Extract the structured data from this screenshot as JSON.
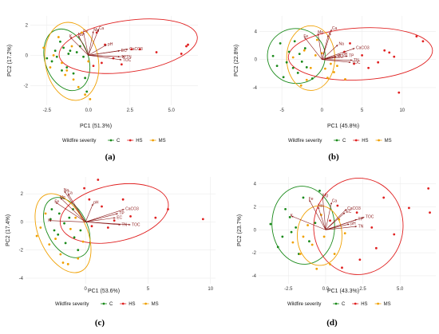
{
  "legend": {
    "title": "Wildfire severity",
    "items": [
      "C",
      "HS",
      "MS"
    ]
  },
  "colors": {
    "C": "#1a8a1a",
    "HS": "#e02020",
    "MS": "#f0a000",
    "arrow": "#8b1a1a",
    "grid": "#ececec"
  },
  "chart_data": [
    {
      "type": "scatter",
      "panel_label": "(a)",
      "xlabel": "PC1 (51.3%)",
      "ylabel": "PC2 (17.2%)",
      "xlim": [
        -3.5,
        6.6
      ],
      "ylim": [
        -3.3,
        2.6
      ],
      "xticks": [
        "-2.5",
        "0.0",
        "2.5",
        "5.0"
      ],
      "xtick_values": [
        -2.5,
        0,
        2.5,
        5
      ],
      "yticks": [
        "2",
        "0",
        "-2"
      ],
      "ytick_values": [
        2,
        0,
        -2
      ],
      "ellipses": [
        {
          "group": "C",
          "cx": -1.3,
          "cy": -0.3,
          "rx": 1.3,
          "ry": 2.1,
          "angle": -20
        },
        {
          "group": "HS",
          "cx": 2.4,
          "cy": 0.6,
          "rx": 4.2,
          "ry": 1.7,
          "angle": -8
        },
        {
          "group": "MS",
          "cx": -1.0,
          "cy": -0.4,
          "rx": 1.6,
          "ry": 2.6,
          "angle": -10
        }
      ],
      "arrows": [
        {
          "label": "pH",
          "x": 1.1,
          "y": 0.7
        },
        {
          "label": "EC",
          "x": 1.9,
          "y": 0.3
        },
        {
          "label": "CaCO3",
          "x": 2.4,
          "y": 0.4
        },
        {
          "label": "TP",
          "x": 1.9,
          "y": -0.1
        },
        {
          "label": "TN",
          "x": 2.2,
          "y": -0.1
        },
        {
          "label": "TOC",
          "x": 2.0,
          "y": -0.3
        },
        {
          "label": "Ca",
          "x": 0.6,
          "y": 1.7
        },
        {
          "label": "Mg",
          "x": 0.3,
          "y": 1.6
        },
        {
          "label": "Fe",
          "x": -0.3,
          "y": 1.5
        },
        {
          "label": "K",
          "x": -1.1,
          "y": 1.2
        },
        {
          "label": "Na",
          "x": -0.6,
          "y": 1.3
        }
      ],
      "series": [
        {
          "group": "C",
          "points": [
            [
              -1.7,
              0.9
            ],
            [
              -2.2,
              -0.4
            ],
            [
              -1.9,
              -0.1
            ],
            [
              -1.5,
              0.5
            ],
            [
              -1.2,
              0.1
            ],
            [
              -2.5,
              -0.2
            ],
            [
              -0.5,
              0.6
            ],
            [
              -0.9,
              -1.2
            ],
            [
              -1.3,
              -0.8
            ],
            [
              -0.3,
              -0.1
            ],
            [
              -2.0,
              0.3
            ],
            [
              -1.1,
              0.3
            ],
            [
              -0.2,
              -1.5
            ],
            [
              -1.6,
              -1.0
            ],
            [
              -0.7,
              0.2
            ],
            [
              -0.1,
              -2.4
            ]
          ]
        },
        {
          "group": "HS",
          "points": [
            [
              0.5,
              1.5
            ],
            [
              1.0,
              0.7
            ],
            [
              2.6,
              0.4
            ],
            [
              3.1,
              0.4
            ],
            [
              4.1,
              0.2
            ],
            [
              5.6,
              0.1
            ],
            [
              5.9,
              0.6
            ],
            [
              6.0,
              0.7
            ],
            [
              2.0,
              -0.6
            ],
            [
              0.8,
              -0.5
            ],
            [
              1.5,
              -0.2
            ],
            [
              0.3,
              -0.7
            ]
          ]
        },
        {
          "group": "MS",
          "points": [
            [
              -2.1,
              0.0
            ],
            [
              -1.6,
              -0.5
            ],
            [
              -1.3,
              -1.0
            ],
            [
              -0.9,
              -1.6
            ],
            [
              -0.6,
              -2.1
            ],
            [
              -0.2,
              -2.6
            ],
            [
              0.1,
              -2.9
            ],
            [
              -2.7,
              0.5
            ],
            [
              -1.8,
              1.2
            ],
            [
              -0.4,
              1.5
            ],
            [
              -2.3,
              -0.8
            ],
            [
              -1.0,
              0.6
            ],
            [
              0.0,
              -0.4
            ],
            [
              -1.4,
              -1.3
            ]
          ]
        }
      ]
    },
    {
      "type": "scatter",
      "panel_label": "(b)",
      "xlabel": "PC1 (45.8%)",
      "ylabel": "PC2 (22.8%)",
      "xlim": [
        -7.8,
        14.2
      ],
      "ylim": [
        -6.5,
        6.2
      ],
      "xticks": [
        "-5",
        "0",
        "5",
        "10"
      ],
      "xtick_values": [
        -5,
        0,
        5,
        10
      ],
      "yticks": [
        "4",
        "0",
        "-4"
      ],
      "ytick_values": [
        4,
        0,
        -4
      ],
      "ellipses": [
        {
          "group": "C",
          "cx": -3.2,
          "cy": 0.5,
          "rx": 3.6,
          "ry": 3.9,
          "angle": 5
        },
        {
          "group": "HS",
          "cx": 4.8,
          "cy": 0.8,
          "rx": 9.0,
          "ry": 3.7,
          "angle": -3
        },
        {
          "group": "MS",
          "cx": -1.4,
          "cy": 0.2,
          "rx": 3.0,
          "ry": 4.6,
          "angle": 0
        }
      ],
      "arrows": [
        {
          "label": "pH",
          "x": 2.4,
          "y": 0.7
        },
        {
          "label": "EC",
          "x": 1.8,
          "y": 0.4
        },
        {
          "label": "CaCO3",
          "x": 4.1,
          "y": 1.6
        },
        {
          "label": "TP",
          "x": 3.2,
          "y": 0.5
        },
        {
          "label": "TN",
          "x": 3.8,
          "y": -0.1
        },
        {
          "label": "TOC",
          "x": 3.6,
          "y": -0.4
        },
        {
          "label": "Ca",
          "x": 1.2,
          "y": 4.3
        },
        {
          "label": "Mg",
          "x": -0.5,
          "y": 3.7
        },
        {
          "label": "Fe",
          "x": -2.2,
          "y": 3.2
        },
        {
          "label": "K",
          "x": 0.8,
          "y": 3.5
        },
        {
          "label": "Na",
          "x": 2.0,
          "y": 2.1
        }
      ],
      "series": [
        {
          "group": "C",
          "points": [
            [
              -5.2,
              2.3
            ],
            [
              -6.1,
              0.5
            ],
            [
              -4.4,
              -0.4
            ],
            [
              -3.6,
              -1.2
            ],
            [
              -2.8,
              0.8
            ],
            [
              -4.8,
              -2.5
            ],
            [
              -3.0,
              -1.9
            ],
            [
              -1.9,
              -1.1
            ],
            [
              -5.6,
              -0.9
            ],
            [
              -2.1,
              1.6
            ],
            [
              -3.4,
              2.6
            ],
            [
              -1.2,
              -2.7
            ],
            [
              -4.1,
              1.1
            ],
            [
              -2.5,
              -0.3
            ]
          ]
        },
        {
          "group": "HS",
          "points": [
            [
              3.5,
              2.3
            ],
            [
              5.0,
              0.6
            ],
            [
              7.0,
              -0.4
            ],
            [
              7.8,
              1.3
            ],
            [
              9.0,
              0.4
            ],
            [
              11.8,
              3.3
            ],
            [
              12.6,
              2.6
            ],
            [
              9.6,
              -4.7
            ],
            [
              4.0,
              -0.6
            ],
            [
              2.8,
              1.1
            ],
            [
              5.8,
              -1.2
            ],
            [
              8.4,
              1.0
            ]
          ]
        },
        {
          "group": "MS",
          "points": [
            [
              -2.6,
              -3.7
            ],
            [
              -1.4,
              -1.2
            ],
            [
              -0.8,
              0.6
            ],
            [
              0.4,
              -1.3
            ],
            [
              -1.9,
              -2.9
            ],
            [
              1.1,
              -0.6
            ],
            [
              -0.6,
              2.8
            ],
            [
              0.7,
              -2.6
            ],
            [
              -3.6,
              0.3
            ],
            [
              1.9,
              -0.9
            ],
            [
              2.9,
              -2.8
            ],
            [
              0.0,
              0.9
            ],
            [
              -2.2,
              1.3
            ],
            [
              1.5,
              -1.8
            ]
          ]
        }
      ]
    },
    {
      "type": "scatter",
      "panel_label": "(c)",
      "xlabel": "PC1 (53.6%)",
      "ylabel": "PC2 (17.4%)",
      "xlim": [
        -4.8,
        10.4
      ],
      "ylim": [
        -4.4,
        3.2
      ],
      "xticks": [
        "0",
        "5",
        "10"
      ],
      "xtick_values": [
        0,
        5,
        10
      ],
      "yticks": [
        "2",
        "0",
        "-2",
        "-4"
      ],
      "ytick_values": [
        2,
        0,
        -2,
        -4
      ],
      "ellipses": [
        {
          "group": "C",
          "cx": -1.5,
          "cy": -0.4,
          "rx": 1.6,
          "ry": 2.3,
          "angle": -28
        },
        {
          "group": "HS",
          "cx": 2.3,
          "cy": 0.6,
          "rx": 4.4,
          "ry": 2.0,
          "angle": -12
        },
        {
          "group": "MS",
          "cx": -1.8,
          "cy": -0.8,
          "rx": 1.9,
          "ry": 3.0,
          "angle": -25
        }
      ],
      "arrows": [
        {
          "label": "pH",
          "x": 0.6,
          "y": 1.3
        },
        {
          "label": "EC",
          "x": 2.4,
          "y": 0.3
        },
        {
          "label": "CaCO3",
          "x": 3.1,
          "y": 0.9
        },
        {
          "label": "TP",
          "x": 2.6,
          "y": 0.6
        },
        {
          "label": "TN",
          "x": 2.8,
          "y": -0.2
        },
        {
          "label": "TOC",
          "x": 3.6,
          "y": -0.2
        },
        {
          "label": "Ca",
          "x": -1.4,
          "y": 2.0
        },
        {
          "label": "Mg",
          "x": -2.0,
          "y": 1.7
        },
        {
          "label": "Fe",
          "x": -2.4,
          "y": 1.4
        },
        {
          "label": "K",
          "x": -2.9,
          "y": 0.1
        },
        {
          "label": "Na",
          "x": -1.7,
          "y": 2.2
        }
      ],
      "series": [
        {
          "group": "C",
          "points": [
            [
              -2.1,
              0.6
            ],
            [
              -1.7,
              -0.1
            ],
            [
              -2.5,
              -0.6
            ],
            [
              -1.3,
              0.3
            ],
            [
              -0.9,
              -1.1
            ],
            [
              -2.7,
              0.9
            ],
            [
              -1.6,
              -1.5
            ],
            [
              -0.4,
              -0.6
            ],
            [
              -2.2,
              -0.9
            ],
            [
              -1.0,
              0.9
            ],
            [
              -0.6,
              -2.0
            ],
            [
              -2.8,
              0.2
            ]
          ]
        },
        {
          "group": "HS",
          "points": [
            [
              0.3,
              1.6
            ],
            [
              1.3,
              1.1
            ],
            [
              2.3,
              0.1
            ],
            [
              3.6,
              0.4
            ],
            [
              5.6,
              0.3
            ],
            [
              6.6,
              0.9
            ],
            [
              9.4,
              0.2
            ],
            [
              1.0,
              3.0
            ],
            [
              0.5,
              -0.3
            ],
            [
              1.8,
              -0.4
            ],
            [
              3.0,
              1.6
            ],
            [
              -0.1,
              2.4
            ]
          ]
        },
        {
          "group": "MS",
          "points": [
            [
              -3.6,
              -0.4
            ],
            [
              -2.9,
              -1.6
            ],
            [
              -2.0,
              -2.3
            ],
            [
              -1.4,
              -3.0
            ],
            [
              -0.6,
              -2.6
            ],
            [
              -3.2,
              0.6
            ],
            [
              -1.2,
              -0.5
            ],
            [
              -2.4,
              -1.2
            ],
            [
              -0.8,
              0.3
            ],
            [
              -3.9,
              -1.0
            ],
            [
              -1.8,
              -2.9
            ],
            [
              -0.2,
              -1.4
            ]
          ]
        }
      ]
    },
    {
      "type": "scatter",
      "panel_label": "(d)",
      "xlabel": "PC1 (43.3%)",
      "ylabel": "PC2 (23.7%)",
      "xlim": [
        -4.5,
        7.4
      ],
      "ylim": [
        -4.7,
        4.6
      ],
      "xticks": [
        "-2.5",
        "0.0",
        "2.5",
        "5.0"
      ],
      "xtick_values": [
        -2.5,
        0,
        2.5,
        5
      ],
      "yticks": [
        "4",
        "2",
        "0",
        "-2",
        "-4"
      ],
      "ytick_values": [
        4,
        2,
        0,
        -2,
        -4
      ],
      "ellipses": [
        {
          "group": "C",
          "cx": -1.5,
          "cy": 0.4,
          "rx": 2.1,
          "ry": 3.4,
          "angle": -5
        },
        {
          "group": "HS",
          "cx": 2.2,
          "cy": 0.3,
          "rx": 3.0,
          "ry": 4.2,
          "angle": 5
        },
        {
          "group": "MS",
          "cx": -0.4,
          "cy": -0.5,
          "rx": 1.5,
          "ry": 2.6,
          "angle": 0
        }
      ],
      "arrows": [
        {
          "label": "pH",
          "x": 1.6,
          "y": 0.5
        },
        {
          "label": "EC",
          "x": 1.3,
          "y": 1.5
        },
        {
          "label": "CaCO3",
          "x": 1.4,
          "y": 1.8
        },
        {
          "label": "TP",
          "x": 2.1,
          "y": 0.9
        },
        {
          "label": "TN",
          "x": 2.1,
          "y": 0.3
        },
        {
          "label": "TOC",
          "x": 2.6,
          "y": 1.1
        },
        {
          "label": "Ca",
          "x": 0.4,
          "y": 2.4
        },
        {
          "label": "Mg",
          "x": -0.2,
          "y": 2.9
        },
        {
          "label": "Fe",
          "x": -1.1,
          "y": 2.6
        },
        {
          "label": "K",
          "x": -2.3,
          "y": 1.2
        },
        {
          "label": "Na",
          "x": -0.5,
          "y": 2.0
        }
      ],
      "series": [
        {
          "group": "C",
          "points": [
            [
              -3.7,
              0.5
            ],
            [
              -2.9,
              -0.6
            ],
            [
              -2.4,
              1.1
            ],
            [
              -2.0,
              0.2
            ],
            [
              -1.5,
              2.8
            ],
            [
              -1.1,
              -1.0
            ],
            [
              -2.7,
              1.8
            ],
            [
              -0.7,
              0.6
            ],
            [
              -3.2,
              -1.5
            ],
            [
              -1.8,
              -2.1
            ],
            [
              -0.4,
              3.4
            ],
            [
              -2.3,
              -0.2
            ]
          ]
        },
        {
          "group": "HS",
          "points": [
            [
              0.8,
              2.1
            ],
            [
              2.1,
              1.5
            ],
            [
              3.1,
              0.2
            ],
            [
              3.9,
              2.8
            ],
            [
              4.6,
              -0.4
            ],
            [
              5.6,
              1.9
            ],
            [
              6.9,
              3.6
            ],
            [
              7.0,
              1.5
            ],
            [
              2.3,
              -2.6
            ],
            [
              1.1,
              -3.3
            ],
            [
              3.4,
              -1.6
            ],
            [
              0.3,
              0.8
            ]
          ]
        },
        {
          "group": "MS",
          "points": [
            [
              -1.7,
              -2.1
            ],
            [
              -0.9,
              -1.3
            ],
            [
              -0.1,
              -0.6
            ],
            [
              0.6,
              -2.1
            ],
            [
              -1.2,
              0.4
            ],
            [
              0.3,
              -3.0
            ],
            [
              -0.6,
              -3.4
            ],
            [
              1.3,
              -0.3
            ],
            [
              -2.2,
              -1.1
            ],
            [
              0.9,
              0.9
            ],
            [
              -0.3,
              1.3
            ],
            [
              -1.5,
              -0.6
            ]
          ]
        }
      ]
    }
  ]
}
